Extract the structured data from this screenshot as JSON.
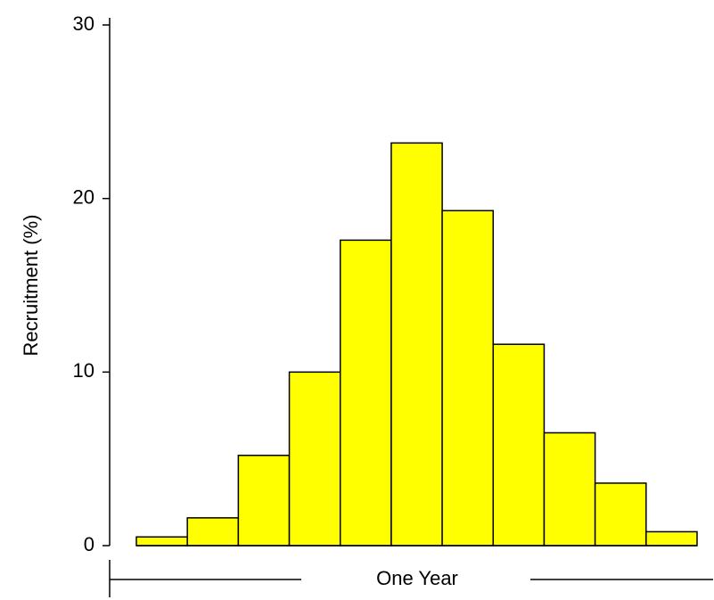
{
  "chart_data": {
    "type": "bar",
    "x_label": "One Year",
    "y_label": "Recruitment (%)",
    "categories": [
      null,
      null,
      null,
      null,
      null,
      null,
      null,
      null,
      null,
      null,
      null
    ],
    "values": [
      0.5,
      1.6,
      5.2,
      10,
      17.6,
      23.2,
      19.3,
      11.6,
      6.5,
      3.6,
      0.8
    ],
    "color": "#ffff00",
    "ylim": [
      0,
      30
    ],
    "yticks": [
      0,
      10,
      20,
      30
    ],
    "grid": false
  }
}
